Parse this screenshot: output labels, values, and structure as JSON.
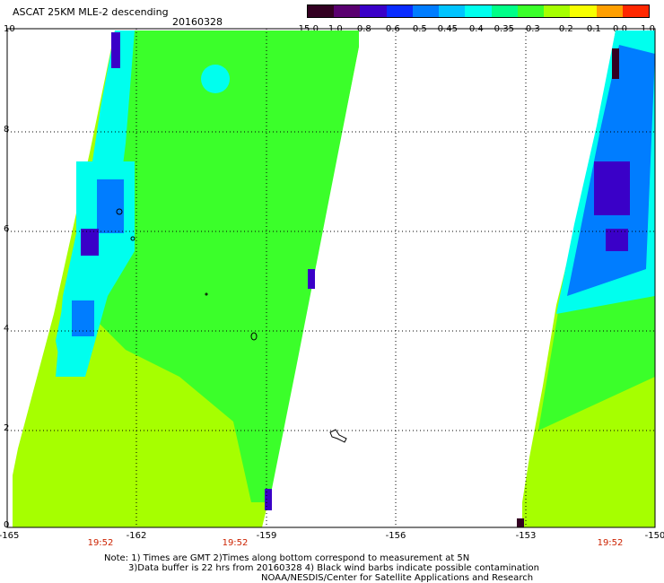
{
  "header": {
    "title": "ASCAT 25KM MLE-2 descending",
    "date": "20160328"
  },
  "colorbar": {
    "labels": [
      "-15.0",
      "-1.0",
      "-0.8",
      "-0.6",
      "-0.5",
      "-0.45",
      "-0.4",
      "-0.35",
      "-0.3",
      "-0.2",
      "-0.1",
      "0.0",
      "1.0"
    ],
    "colors": [
      "#330022",
      "#5a0070",
      "#3a00c8",
      "#0a2cff",
      "#007dff",
      "#00c4ff",
      "#00ffee",
      "#00ff88",
      "#3bff2a",
      "#a6ff00",
      "#f7ff00",
      "#ff9f00",
      "#ff2800"
    ]
  },
  "axes": {
    "y_labels": [
      "10",
      "8",
      "6",
      "4",
      "2",
      "0"
    ],
    "x_labels": [
      "-165",
      "-162",
      "-159",
      "-156",
      "-153",
      "-150"
    ],
    "time_labels": [
      "19:52",
      "19:52",
      "19:52"
    ]
  },
  "map": {
    "legend_colors": {
      "swath_low": "#a6ff00",
      "swath_mid": "#3bff2a",
      "swath_cyan": "#00ffee",
      "swath_blue": "#007dff",
      "swath_dark": "#3a00c8"
    }
  },
  "footer": {
    "note_line1": "Note: 1) Times are GMT 2)Times along bottom correspond to measurement at 5N",
    "note_line2": "3)Data buffer is 22 hrs from 20160328 4) Black wind barbs indicate possible contamination",
    "credit": "NOAA/NESDIS/Center for Satellite Applications and Research"
  }
}
